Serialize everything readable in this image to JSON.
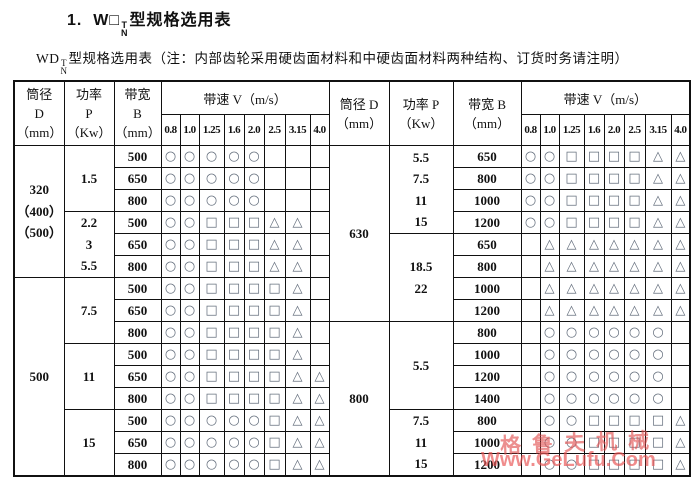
{
  "title": {
    "num": "1.",
    "model": "W□",
    "sup": "T",
    "sub": "N",
    "rest": "型规格选用表"
  },
  "subtitle": {
    "model": "WD",
    "sup": "T",
    "sub": "N",
    "rest": "型规格选用表（注：内部齿轮采用硬齿面材料和中硬齿面材料两种结构、订货时务请注明）"
  },
  "head": {
    "left": {
      "d": "筒径\nD\n（mm）",
      "p": "功率\nP\n（Kw）",
      "b": "带宽\nB\n（mm）",
      "v": "带速 V（m/s）"
    },
    "right": {
      "d": "筒径 D\n（mm）",
      "p": "功率 P\n（Kw）",
      "b": "带宽 B\n（mm）",
      "v": "带速 V（m/s）"
    },
    "speeds": [
      "0.8",
      "1.0",
      "1.25",
      "1.6",
      "2.0",
      "2.5",
      "3.15",
      "4.0"
    ]
  },
  "symbols": {
    "circle": "○",
    "square": "□",
    "triangle": "△"
  },
  "rows": [
    {
      "left": {
        "pre": [
          {
            "t": "320\n（400）\n（500）",
            "span": 6,
            "name": "diameter-group-320"
          },
          {
            "t": "1.5",
            "span": 3,
            "name": "power-group"
          }
        ],
        "b": "500",
        "m": [
          "o",
          "o",
          "o",
          "o",
          "o",
          "",
          "",
          ""
        ]
      },
      "right": {
        "pre": [
          {
            "t": "630",
            "span": 8,
            "name": "diameter-group-630"
          },
          {
            "t": "5.5\n7.5\n11\n15",
            "span": 4,
            "name": "power-group"
          }
        ],
        "b": "650",
        "m": [
          "o",
          "o",
          "q",
          "q",
          "q",
          "q",
          "t",
          "t"
        ]
      }
    },
    {
      "left": {
        "b": "650",
        "m": [
          "o",
          "o",
          "o",
          "o",
          "o",
          "",
          "",
          ""
        ]
      },
      "right": {
        "b": "800",
        "m": [
          "o",
          "o",
          "q",
          "q",
          "q",
          "q",
          "t",
          "t"
        ]
      }
    },
    {
      "left": {
        "b": "800",
        "m": [
          "o",
          "o",
          "o",
          "o",
          "o",
          "",
          "",
          ""
        ]
      },
      "right": {
        "b": "1000",
        "m": [
          "o",
          "o",
          "q",
          "q",
          "q",
          "q",
          "t",
          "t"
        ]
      }
    },
    {
      "left": {
        "pre": [
          {
            "t": "2.2\n3\n5.5",
            "span": 3,
            "name": "power-group"
          }
        ],
        "b": "500",
        "m": [
          "o",
          "o",
          "q",
          "q",
          "q",
          "t",
          "t",
          ""
        ]
      },
      "right": {
        "b": "1200",
        "m": [
          "o",
          "o",
          "q",
          "q",
          "q",
          "q",
          "t",
          "t"
        ]
      }
    },
    {
      "left": {
        "b": "650",
        "m": [
          "o",
          "o",
          "q",
          "q",
          "q",
          "t",
          "t",
          ""
        ]
      },
      "right": {
        "pre": [
          {
            "t": "18.5\n22",
            "span": 4,
            "name": "power-group"
          }
        ],
        "b": "650",
        "m": [
          "",
          "t",
          "t",
          "t",
          "t",
          "t",
          "t",
          "t"
        ]
      }
    },
    {
      "left": {
        "b": "800",
        "m": [
          "o",
          "o",
          "q",
          "q",
          "q",
          "t",
          "t",
          ""
        ]
      },
      "right": {
        "b": "800",
        "m": [
          "",
          "t",
          "t",
          "t",
          "t",
          "t",
          "t",
          "t"
        ]
      }
    },
    {
      "left": {
        "pre": [
          {
            "t": "500",
            "span": 9,
            "name": "diameter-group-500"
          },
          {
            "t": "7.5",
            "span": 3,
            "name": "power-group"
          }
        ],
        "b": "500",
        "m": [
          "o",
          "o",
          "q",
          "q",
          "q",
          "q",
          "t",
          ""
        ]
      },
      "right": {
        "b": "1000",
        "m": [
          "",
          "t",
          "t",
          "t",
          "t",
          "t",
          "t",
          "t"
        ]
      }
    },
    {
      "left": {
        "b": "650",
        "m": [
          "o",
          "o",
          "q",
          "q",
          "q",
          "q",
          "t",
          ""
        ]
      },
      "right": {
        "b": "1200",
        "m": [
          "",
          "t",
          "t",
          "t",
          "t",
          "t",
          "t",
          "t"
        ]
      }
    },
    {
      "left": {
        "b": "800",
        "m": [
          "o",
          "o",
          "q",
          "q",
          "q",
          "q",
          "t",
          ""
        ]
      },
      "right": {
        "pre": [
          {
            "t": "800",
            "span": 7,
            "name": "diameter-group-800"
          },
          {
            "t": "5.5",
            "span": 4,
            "name": "power-group"
          }
        ],
        "b": "800",
        "m": [
          "",
          "o",
          "o",
          "o",
          "o",
          "o",
          "o",
          ""
        ]
      }
    },
    {
      "left": {
        "pre": [
          {
            "t": "11",
            "span": 3,
            "name": "power-group"
          }
        ],
        "b": "500",
        "m": [
          "o",
          "o",
          "q",
          "q",
          "q",
          "q",
          "t",
          ""
        ]
      },
      "right": {
        "b": "1000",
        "m": [
          "",
          "o",
          "o",
          "o",
          "o",
          "o",
          "o",
          ""
        ]
      }
    },
    {
      "left": {
        "b": "650",
        "m": [
          "o",
          "o",
          "q",
          "q",
          "q",
          "q",
          "t",
          "t"
        ]
      },
      "right": {
        "b": "1200",
        "m": [
          "",
          "o",
          "o",
          "o",
          "o",
          "o",
          "o",
          ""
        ]
      }
    },
    {
      "left": {
        "b": "800",
        "m": [
          "o",
          "o",
          "q",
          "q",
          "q",
          "q",
          "t",
          "t"
        ]
      },
      "right": {
        "b": "1400",
        "m": [
          "",
          "o",
          "o",
          "o",
          "o",
          "o",
          "o",
          ""
        ]
      }
    },
    {
      "left": {
        "pre": [
          {
            "t": "15",
            "span": 3,
            "name": "power-group"
          }
        ],
        "b": "500",
        "m": [
          "o",
          "o",
          "o",
          "o",
          "o",
          "q",
          "t",
          "t"
        ]
      },
      "right": {
        "pre": [
          {
            "t": "7.5\n11\n15",
            "span": 3,
            "name": "power-group"
          }
        ],
        "b": "800",
        "m": [
          "",
          "o",
          "o",
          "q",
          "q",
          "q",
          "q",
          "t"
        ]
      }
    },
    {
      "left": {
        "b": "650",
        "m": [
          "o",
          "o",
          "o",
          "o",
          "o",
          "q",
          "t",
          "t"
        ]
      },
      "right": {
        "b": "1000",
        "m": [
          "",
          "o",
          "o",
          "q",
          "q",
          "q",
          "q",
          "t"
        ]
      }
    },
    {
      "left": {
        "b": "800",
        "m": [
          "o",
          "o",
          "o",
          "o",
          "o",
          "q",
          "t",
          "t"
        ]
      },
      "right": {
        "b": "1200",
        "m": [
          "",
          "o",
          "o",
          "q",
          "q",
          "q",
          "q",
          "t"
        ]
      }
    }
  ],
  "watermark": {
    "cn": "格鲁夫机械",
    "url": "Www.GeLufu.Com"
  }
}
